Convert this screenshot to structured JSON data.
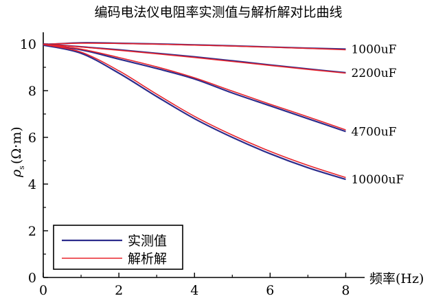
{
  "chart_data": {
    "type": "line",
    "title": "编码电法仪电阻率实测值与解析解对比曲线",
    "xlabel": "频率(Hz)",
    "ylabel_main": "ρ",
    "ylabel_sub": "s",
    "ylabel_unit": "(Ω·m)",
    "xlim": [
      0,
      8.5
    ],
    "ylim": [
      0,
      10.5
    ],
    "x_ticks": [
      0,
      2,
      4,
      6,
      8
    ],
    "y_ticks": [
      0,
      2,
      4,
      6,
      8,
      10
    ],
    "grid": false,
    "legend_position": "bottom-left",
    "colors": {
      "measured": "#2c2c8c",
      "analytic": "#e8232b"
    },
    "legend": [
      {
        "label": "实测值",
        "series_type": "measured"
      },
      {
        "label": "解析解",
        "series_type": "analytic"
      }
    ],
    "curves": [
      {
        "label": "1000uF",
        "measured": {
          "x": [
            0,
            1,
            2,
            3,
            4,
            5,
            6,
            7,
            8
          ],
          "values": [
            9.97,
            10.05,
            10.03,
            10.0,
            9.96,
            9.92,
            9.87,
            9.82,
            9.78
          ]
        },
        "analytic": {
          "x": [
            0,
            1,
            2,
            3,
            4,
            5,
            6,
            7,
            8
          ],
          "values": [
            9.99,
            10.03,
            10.02,
            9.99,
            9.95,
            9.91,
            9.86,
            9.81,
            9.75
          ]
        }
      },
      {
        "label": "2200uF",
        "measured": {
          "x": [
            0,
            1,
            2,
            3,
            4,
            5,
            6,
            7,
            8
          ],
          "values": [
            10.0,
            9.88,
            9.75,
            9.6,
            9.45,
            9.28,
            9.1,
            8.93,
            8.77
          ]
        },
        "analytic": {
          "x": [
            0,
            1,
            2,
            3,
            4,
            5,
            6,
            7,
            8
          ],
          "values": [
            10.0,
            9.87,
            9.73,
            9.58,
            9.42,
            9.25,
            9.08,
            8.91,
            8.75
          ]
        }
      },
      {
        "label": "4700uF",
        "measured": {
          "x": [
            0,
            1,
            2,
            3,
            4,
            5,
            6,
            7,
            8
          ],
          "values": [
            9.98,
            9.75,
            9.35,
            8.95,
            8.5,
            7.9,
            7.35,
            6.8,
            6.25
          ]
        },
        "analytic": {
          "x": [
            0,
            1,
            2,
            3,
            4,
            5,
            6,
            7,
            8
          ],
          "values": [
            9.98,
            9.78,
            9.42,
            9.02,
            8.55,
            7.98,
            7.42,
            6.88,
            6.32
          ]
        }
      },
      {
        "label": "10000uF",
        "measured": {
          "x": [
            0,
            1,
            2,
            3,
            4,
            5,
            6,
            7,
            8
          ],
          "values": [
            9.95,
            9.6,
            8.75,
            7.75,
            6.8,
            6.0,
            5.3,
            4.7,
            4.2
          ]
        },
        "analytic": {
          "x": [
            0,
            1,
            2,
            3,
            4,
            5,
            6,
            7,
            8
          ],
          "values": [
            9.98,
            9.65,
            8.85,
            7.85,
            6.9,
            6.1,
            5.4,
            4.8,
            4.28
          ]
        }
      }
    ]
  }
}
